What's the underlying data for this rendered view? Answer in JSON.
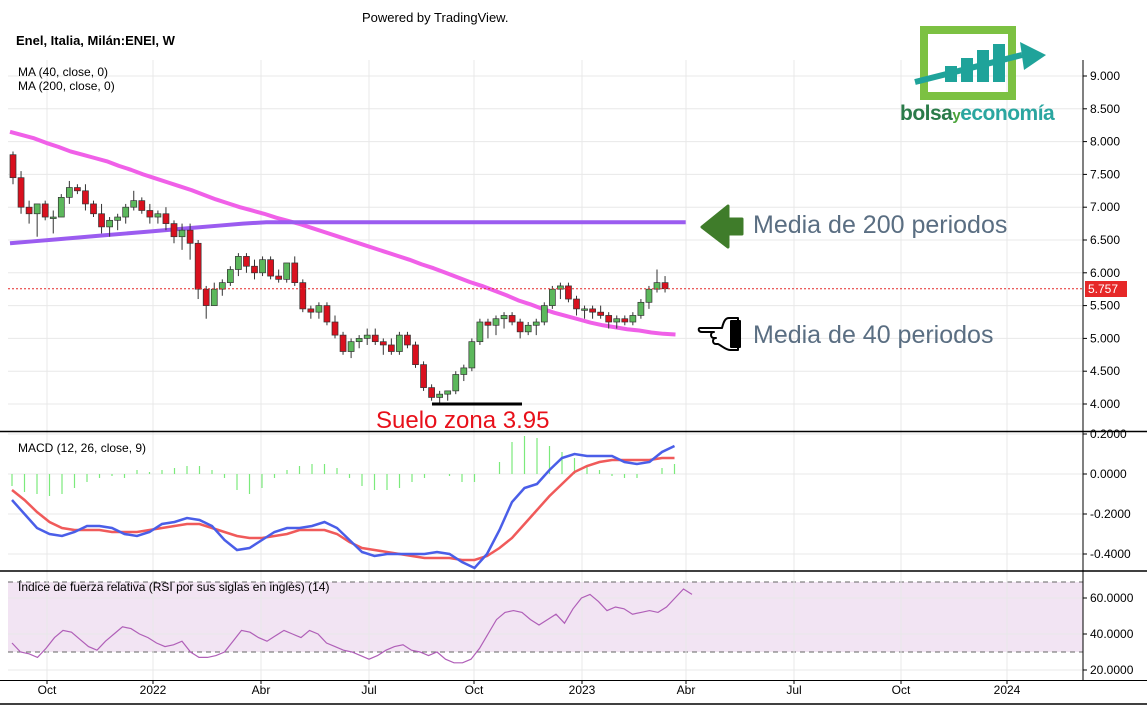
{
  "header": {
    "powered_by": "Powered by TradingView.",
    "symbol": "Enel, Italia, Milán:ENEI, W"
  },
  "logo": {
    "part1": "bolsa",
    "part2": "y",
    "part3": "economía",
    "colors": {
      "green_dark": "#2a7b49",
      "green_light": "#7cc142",
      "teal": "#1fa39a"
    }
  },
  "annotations": {
    "ma200_text": "Media de 200 periodos",
    "ma40_text": "Media de 40 periodos",
    "suelo_text": "Suelo zona 3.95",
    "arrow_icon": "left-arrow-icon",
    "hand_icon": "pointing-hand-icon"
  },
  "colors": {
    "bull": "#5cb85c",
    "bear": "#d9101e",
    "ma40": "#f060e8",
    "ma200": "#9b5cf0",
    "macd_line": "#4a5ee8",
    "signal_line": "#f05a5a",
    "histogram": "#7bea7b",
    "rsi_line": "#b05fb8",
    "rsi_band": "#f2e4f3",
    "price_line": "#e62828"
  },
  "chart_data": [
    {
      "type": "candlestick",
      "title": "Enel, Italia, Milán:ENEI, W",
      "indicators": [
        "MA (40, close, 0)",
        "MA (200, close, 0)"
      ],
      "last_price": "5.757",
      "ylim": [
        3.8,
        9.2
      ],
      "y_ticks": [
        "4.000",
        "4.500",
        "5.000",
        "5.500",
        "6.000",
        "6.500",
        "7.000",
        "7.500",
        "8.000",
        "8.500",
        "9.000"
      ],
      "x_ticks": [
        "Oct",
        "2022",
        "Abr",
        "Jul",
        "Oct",
        "2023",
        "Abr",
        "Jul",
        "Oct",
        "2024"
      ],
      "candles": [
        [
          7.8,
          7.85,
          7.35,
          7.45
        ],
        [
          7.45,
          7.55,
          6.9,
          7.0
        ],
        [
          7.0,
          7.1,
          6.75,
          6.9
        ],
        [
          6.9,
          7.05,
          6.55,
          7.05
        ],
        [
          7.05,
          7.1,
          6.8,
          6.85
        ],
        [
          6.85,
          6.95,
          6.6,
          6.85
        ],
        [
          6.85,
          7.2,
          6.85,
          7.15
        ],
        [
          7.15,
          7.4,
          7.05,
          7.3
        ],
        [
          7.3,
          7.35,
          7.2,
          7.25
        ],
        [
          7.25,
          7.35,
          6.95,
          7.05
        ],
        [
          7.05,
          7.1,
          6.85,
          6.9
        ],
        [
          6.9,
          7.05,
          6.6,
          6.7
        ],
        [
          6.7,
          6.85,
          6.55,
          6.8
        ],
        [
          6.8,
          6.9,
          6.65,
          6.85
        ],
        [
          6.85,
          7.05,
          6.75,
          7.0
        ],
        [
          7.0,
          7.25,
          6.95,
          7.1
        ],
        [
          7.1,
          7.15,
          6.9,
          6.95
        ],
        [
          6.95,
          7.05,
          6.75,
          6.85
        ],
        [
          6.85,
          6.95,
          6.75,
          6.9
        ],
        [
          6.9,
          7.0,
          6.65,
          6.75
        ],
        [
          6.75,
          6.8,
          6.45,
          6.55
        ],
        [
          6.55,
          6.75,
          6.35,
          6.65
        ],
        [
          6.65,
          6.75,
          6.2,
          6.45
        ],
        [
          6.45,
          6.5,
          5.6,
          5.75
        ],
        [
          5.75,
          5.8,
          5.3,
          5.5
        ],
        [
          5.5,
          5.85,
          5.5,
          5.75
        ],
        [
          5.75,
          5.9,
          5.65,
          5.85
        ],
        [
          5.85,
          6.1,
          5.8,
          6.05
        ],
        [
          6.05,
          6.3,
          5.95,
          6.25
        ],
        [
          6.25,
          6.3,
          6.0,
          6.1
        ],
        [
          6.1,
          6.2,
          5.9,
          6.0
        ],
        [
          6.0,
          6.25,
          5.95,
          6.2
        ],
        [
          6.2,
          6.25,
          5.9,
          5.95
        ],
        [
          5.95,
          6.05,
          5.85,
          5.9
        ],
        [
          5.9,
          6.15,
          5.85,
          6.15
        ],
        [
          6.15,
          6.25,
          5.8,
          5.85
        ],
        [
          5.85,
          5.9,
          5.4,
          5.45
        ],
        [
          5.45,
          5.5,
          5.3,
          5.4
        ],
        [
          5.4,
          5.55,
          5.3,
          5.5
        ],
        [
          5.5,
          5.55,
          5.2,
          5.25
        ],
        [
          5.25,
          5.35,
          5.0,
          5.05
        ],
        [
          5.05,
          5.1,
          4.75,
          4.8
        ],
        [
          4.8,
          5.0,
          4.7,
          4.95
        ],
        [
          4.95,
          5.05,
          4.85,
          5.0
        ],
        [
          5.0,
          5.15,
          4.9,
          5.05
        ],
        [
          5.05,
          5.15,
          4.9,
          4.95
        ],
        [
          4.95,
          5.0,
          4.75,
          4.9
        ],
        [
          4.9,
          5.0,
          4.75,
          4.8
        ],
        [
          4.8,
          5.1,
          4.75,
          5.05
        ],
        [
          5.05,
          5.1,
          4.85,
          4.9
        ],
        [
          4.9,
          4.95,
          4.55,
          4.6
        ],
        [
          4.6,
          4.65,
          4.2,
          4.25
        ],
        [
          4.25,
          4.3,
          4.05,
          4.1
        ],
        [
          4.1,
          4.2,
          4.0,
          4.15
        ],
        [
          4.15,
          4.2,
          4.05,
          4.2
        ],
        [
          4.2,
          4.5,
          4.15,
          4.45
        ],
        [
          4.45,
          4.6,
          4.35,
          4.55
        ],
        [
          4.55,
          5.0,
          4.5,
          4.95
        ],
        [
          4.95,
          5.3,
          4.9,
          5.25
        ],
        [
          5.25,
          5.3,
          5.0,
          5.2
        ],
        [
          5.2,
          5.35,
          5.05,
          5.3
        ],
        [
          5.3,
          5.4,
          5.15,
          5.35
        ],
        [
          5.35,
          5.4,
          5.2,
          5.25
        ],
        [
          5.25,
          5.3,
          5.0,
          5.1
        ],
        [
          5.1,
          5.25,
          5.05,
          5.2
        ],
        [
          5.2,
          5.3,
          5.05,
          5.25
        ],
        [
          5.25,
          5.55,
          5.2,
          5.5
        ],
        [
          5.5,
          5.8,
          5.45,
          5.75
        ],
        [
          5.75,
          5.85,
          5.6,
          5.8
        ],
        [
          5.8,
          5.85,
          5.55,
          5.6
        ],
        [
          5.6,
          5.65,
          5.35,
          5.45
        ],
        [
          5.45,
          5.5,
          5.3,
          5.45
        ],
        [
          5.45,
          5.5,
          5.3,
          5.4
        ],
        [
          5.4,
          5.5,
          5.3,
          5.35
        ],
        [
          5.35,
          5.4,
          5.15,
          5.25
        ],
        [
          5.25,
          5.35,
          5.15,
          5.3
        ],
        [
          5.3,
          5.35,
          5.2,
          5.25
        ],
        [
          5.25,
          5.4,
          5.2,
          5.35
        ],
        [
          5.35,
          5.6,
          5.3,
          5.55
        ],
        [
          5.55,
          5.8,
          5.45,
          5.75
        ],
        [
          5.75,
          6.05,
          5.7,
          5.85
        ],
        [
          5.85,
          5.95,
          5.7,
          5.757
        ]
      ],
      "ma40": [
        8.15,
        8.1,
        8.05,
        7.98,
        7.92,
        7.85,
        7.8,
        7.75,
        7.7,
        7.63,
        7.57,
        7.5,
        7.44,
        7.38,
        7.32,
        7.26,
        7.19,
        7.12,
        7.06,
        7.0,
        6.95,
        6.9,
        6.84,
        6.79,
        6.74,
        6.68,
        6.62,
        6.56,
        6.5,
        6.44,
        6.38,
        6.32,
        6.26,
        6.2,
        6.13,
        6.07,
        6.0,
        5.93,
        5.86,
        5.8,
        5.73,
        5.66,
        5.58,
        5.52,
        5.45,
        5.39,
        5.34,
        5.29,
        5.24,
        5.2,
        5.17,
        5.14,
        5.12,
        5.09,
        5.07,
        5.06
      ],
      "ma200": [
        6.45,
        6.48,
        6.51,
        6.54,
        6.57,
        6.6,
        6.63,
        6.66,
        6.69,
        6.72,
        6.75,
        6.77,
        6.77,
        6.77,
        6.77,
        6.77,
        6.77,
        6.77,
        6.77,
        6.77,
        6.77,
        6.77,
        6.77,
        6.77,
        6.77,
        6.77,
        6.77,
        6.77,
        6.77,
        6.77
      ]
    },
    {
      "type": "macd",
      "label": "MACD (12, 26, close, 9)",
      "y_ticks": [
        "0.2000",
        "0.0000",
        "-0.2000",
        "-0.4000"
      ],
      "ylim": [
        -0.5,
        0.2
      ],
      "macd": [
        -0.13,
        -0.2,
        -0.27,
        -0.3,
        -0.31,
        -0.29,
        -0.26,
        -0.26,
        -0.27,
        -0.3,
        -0.31,
        -0.29,
        -0.25,
        -0.24,
        -0.22,
        -0.23,
        -0.26,
        -0.33,
        -0.38,
        -0.37,
        -0.33,
        -0.29,
        -0.27,
        -0.27,
        -0.26,
        -0.24,
        -0.27,
        -0.33,
        -0.39,
        -0.41,
        -0.4,
        -0.4,
        -0.4,
        -0.4,
        -0.39,
        -0.4,
        -0.44,
        -0.47,
        -0.4,
        -0.28,
        -0.14,
        -0.07,
        -0.05,
        0.02,
        0.08,
        0.1,
        0.09,
        0.09,
        0.09,
        0.06,
        0.05,
        0.06,
        0.11,
        0.14
      ],
      "signal": [
        -0.08,
        -0.13,
        -0.19,
        -0.24,
        -0.27,
        -0.28,
        -0.28,
        -0.28,
        -0.29,
        -0.29,
        -0.29,
        -0.28,
        -0.27,
        -0.26,
        -0.25,
        -0.25,
        -0.27,
        -0.29,
        -0.31,
        -0.32,
        -0.32,
        -0.31,
        -0.3,
        -0.28,
        -0.28,
        -0.28,
        -0.3,
        -0.34,
        -0.37,
        -0.38,
        -0.39,
        -0.4,
        -0.41,
        -0.42,
        -0.42,
        -0.42,
        -0.43,
        -0.43,
        -0.41,
        -0.37,
        -0.32,
        -0.25,
        -0.18,
        -0.11,
        -0.05,
        0.01,
        0.04,
        0.06,
        0.07,
        0.07,
        0.07,
        0.07,
        0.08,
        0.08
      ],
      "histogram": [
        -0.06,
        -0.09,
        -0.1,
        -0.11,
        -0.1,
        -0.07,
        -0.04,
        -0.02,
        -0.01,
        -0.02,
        0.02,
        0.01,
        0.02,
        0.03,
        0.04,
        0.04,
        0.02,
        -0.02,
        -0.08,
        -0.1,
        -0.07,
        -0.02,
        0.02,
        0.04,
        0.05,
        0.05,
        0.03,
        -0.02,
        -0.06,
        -0.08,
        -0.08,
        -0.07,
        -0.04,
        -0.02,
        0.0,
        -0.01,
        -0.04,
        -0.04,
        0.0,
        0.06,
        0.16,
        0.19,
        0.18,
        0.14,
        0.11,
        0.08,
        0.04,
        0.02,
        -0.01,
        -0.02,
        -0.02,
        0.0,
        0.03,
        0.05
      ]
    },
    {
      "type": "line",
      "label": "Índice de fuerza relativa (RSI por sus siglas en inglés) (14)",
      "y_ticks": [
        "60.0000",
        "40.0000",
        "20.0000"
      ],
      "ylim": [
        15,
        75
      ],
      "bands": [
        30,
        70
      ],
      "values": [
        35,
        30,
        29,
        27,
        32,
        38,
        42,
        41,
        37,
        33,
        31,
        36,
        40,
        44,
        43,
        40,
        38,
        35,
        33,
        34,
        36,
        30,
        27,
        27,
        28,
        30,
        36,
        42,
        41,
        38,
        36,
        39,
        42,
        40,
        38,
        42,
        40,
        35,
        33,
        31,
        30,
        28,
        26,
        28,
        31,
        33,
        34,
        31,
        30,
        28,
        30,
        26,
        24,
        24,
        26,
        32,
        40,
        48,
        52,
        53,
        52,
        48,
        45,
        48,
        51,
        46,
        54,
        60,
        62,
        58,
        53,
        55,
        54,
        51,
        52,
        53,
        52,
        55,
        60,
        65,
        62
      ]
    }
  ]
}
